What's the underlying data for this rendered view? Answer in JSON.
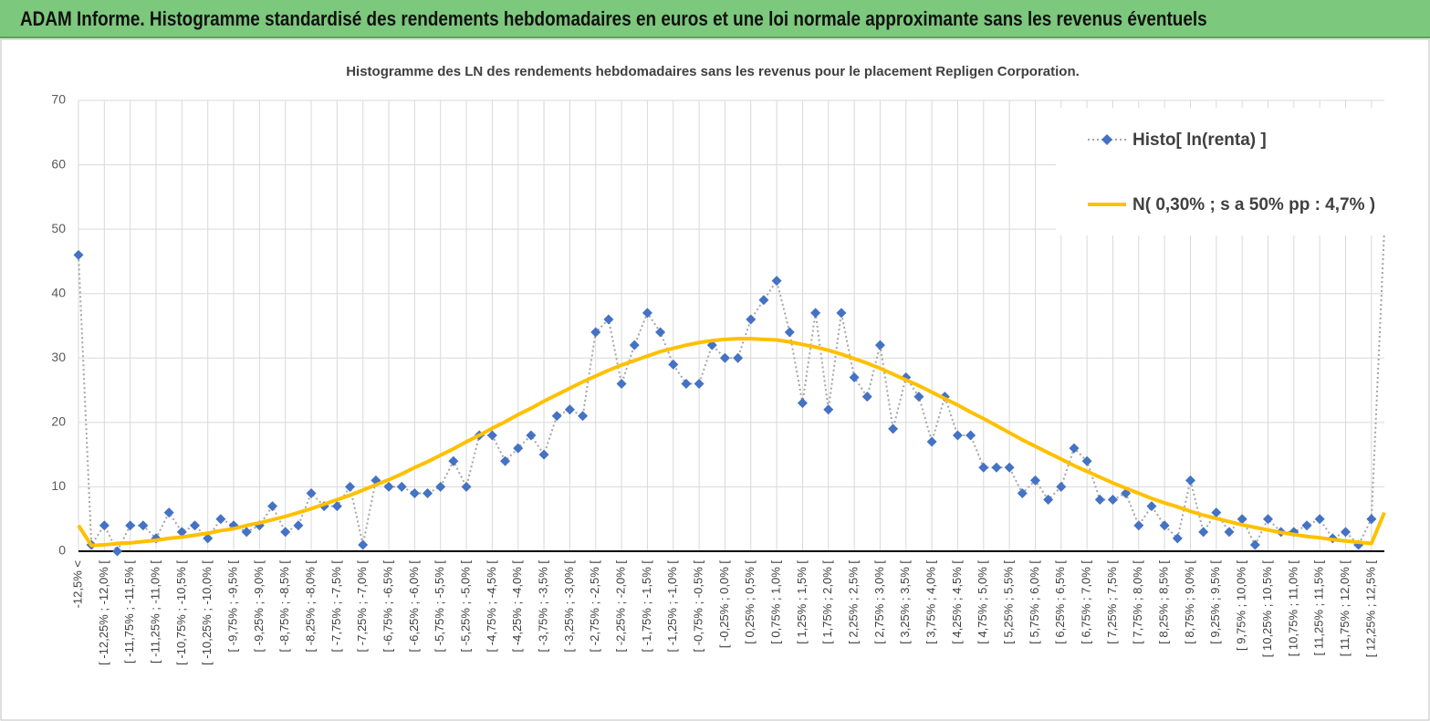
{
  "header": {
    "title": "ADAM Informe. Histogramme standardisé des rendements hebdomadaires en euros et une loi normale approximante sans les revenus éventuels"
  },
  "chart_data": {
    "type": "line",
    "title": "Histogramme  des LN des rendements hebdomadaires sans les revenus pour le placement Repligen Corporation.",
    "categories": [
      "-12,5% <",
      null,
      "[ -12,25% ; -12,0% [",
      null,
      "[ -11,75% ; -11,5% [",
      null,
      "[ -11,25% ; -11,0% [",
      null,
      "[ -10,75% ; -10,5% [",
      null,
      "[ -10,25% ; -10,0% [",
      null,
      "[ -9,75% ; -9,5% [",
      null,
      "[ -9,25% ; -9,0% [",
      null,
      "[ -8,75% ; -8,5% [",
      null,
      "[ -8,25% ; -8,0% [",
      null,
      "[ -7,75% ; -7,5% [",
      null,
      "[ -7,25% ; -7,0% [",
      null,
      "[ -6,75% ; -6,5% [",
      null,
      "[ -6,25% ; -6,0% [",
      null,
      "[ -5,75% ; -5,5% [",
      null,
      "[ -5,25% ; -5,0% [",
      null,
      "[ -4,75% ; -4,5% [",
      null,
      "[ -4,25% ; -4,0% [",
      null,
      "[ -3,75% ; -3,5% [",
      null,
      "[ -3,25% ; -3,0% [",
      null,
      "[ -2,75% ; -2,5% [",
      null,
      "[ -2,25% ; -2,0% [",
      null,
      "[ -1,75% ; -1,5% [",
      null,
      "[ -1,25% ; -1,0% [",
      null,
      "[ -0,75% ; -0,5% [",
      null,
      "[ -0,25% ; 0,0% [",
      null,
      "[ 0,25% ; 0,5% [",
      null,
      "[ 0,75% ; 1,0% [",
      null,
      "[ 1,25% ; 1,5% [",
      null,
      "[ 1,75% ; 2,0% [",
      null,
      "[ 2,25% ; 2,5% [",
      null,
      "[ 2,75% ; 3,0% [",
      null,
      "[ 3,25% ; 3,5% [",
      null,
      "[ 3,75% ; 4,0% [",
      null,
      "[ 4,25% ; 4,5% [",
      null,
      "[ 4,75% ; 5,0% [",
      null,
      "[ 5,25% ; 5,5% [",
      null,
      "[ 5,75% ; 6,0% [",
      null,
      "[ 6,25% ; 6,5% [",
      null,
      "[ 6,75% ; 7,0% [",
      null,
      "[ 7,25% ; 7,5% [",
      null,
      "[ 7,75% ; 8,0% [",
      null,
      "[ 8,25% ; 8,5% [",
      null,
      "[ 8,75% ; 9,0% [",
      null,
      "[ 9,25% ; 9,5% [",
      null,
      "[ 9,75% ; 10,0% [",
      null,
      "[ 10,25% ; 10,5% [",
      null,
      "[ 10,75% ; 11,0% [",
      null,
      "[ 11,25% ; 11,5% [",
      null,
      "[ 11,75% ; 12,0% [",
      null,
      "[ 12,25% ; 12,5% [",
      null
    ],
    "series": [
      {
        "name": "Histo[ ln(renta) ]",
        "color": "#4472c4",
        "line_color": "#a5a5a5",
        "line_style": "dotted",
        "marker": "diamond",
        "values": [
          46,
          1,
          4,
          0,
          4,
          4,
          2,
          6,
          3,
          4,
          2,
          5,
          4,
          3,
          4,
          7,
          3,
          4,
          9,
          7,
          7,
          10,
          1,
          11,
          10,
          10,
          9,
          9,
          10,
          14,
          10,
          18,
          18,
          14,
          16,
          18,
          15,
          21,
          22,
          21,
          34,
          36,
          26,
          32,
          37,
          34,
          29,
          26,
          26,
          32,
          30,
          30,
          36,
          39,
          42,
          34,
          23,
          37,
          22,
          37,
          27,
          24,
          32,
          19,
          27,
          24,
          17,
          24,
          18,
          18,
          13,
          13,
          13,
          9,
          11,
          8,
          10,
          16,
          14,
          8,
          8,
          9,
          4,
          7,
          4,
          2,
          11,
          3,
          6,
          3,
          5,
          1,
          5,
          3,
          3,
          4,
          5,
          2,
          3,
          1,
          5,
          50
        ]
      },
      {
        "name": "N( 0,30% ; s a 50% pp : 4,7% )",
        "color": "#ffc000",
        "line_style": "solid",
        "marker": "none",
        "values": [
          4,
          0.9,
          1.0,
          1.2,
          1.3,
          1.5,
          1.7,
          2.0,
          2.2,
          2.5,
          2.8,
          3.2,
          3.5,
          4.0,
          4.4,
          4.9,
          5.4,
          6.0,
          6.6,
          7.3,
          8.0,
          8.7,
          9.5,
          10.3,
          11.1,
          12.0,
          13.0,
          13.9,
          14.9,
          15.9,
          17.0,
          18.0,
          19.1,
          20.1,
          21.2,
          22.2,
          23.3,
          24.3,
          25.3,
          26.3,
          27.2,
          28.1,
          28.9,
          29.6,
          30.3,
          31.0,
          31.5,
          32.0,
          32.4,
          32.7,
          32.9,
          33.0,
          33.0,
          32.9,
          32.8,
          32.5,
          32.1,
          31.7,
          31.2,
          30.6,
          29.9,
          29.2,
          28.4,
          27.5,
          26.6,
          25.7,
          24.7,
          23.7,
          22.7,
          21.6,
          20.6,
          19.5,
          18.4,
          17.3,
          16.3,
          15.3,
          14.3,
          13.3,
          12.4,
          11.5,
          10.6,
          9.8,
          9.0,
          8.2,
          7.5,
          6.9,
          6.2,
          5.6,
          5.1,
          4.6,
          4.1,
          3.7,
          3.3,
          2.9,
          2.6,
          2.3,
          2.1,
          1.8,
          1.6,
          1.4,
          1.2,
          6
        ]
      }
    ],
    "ylim": [
      0,
      70
    ],
    "yticks": [
      0,
      10,
      20,
      30,
      40,
      50,
      60,
      70
    ],
    "grid": true,
    "legend": "upper right"
  }
}
